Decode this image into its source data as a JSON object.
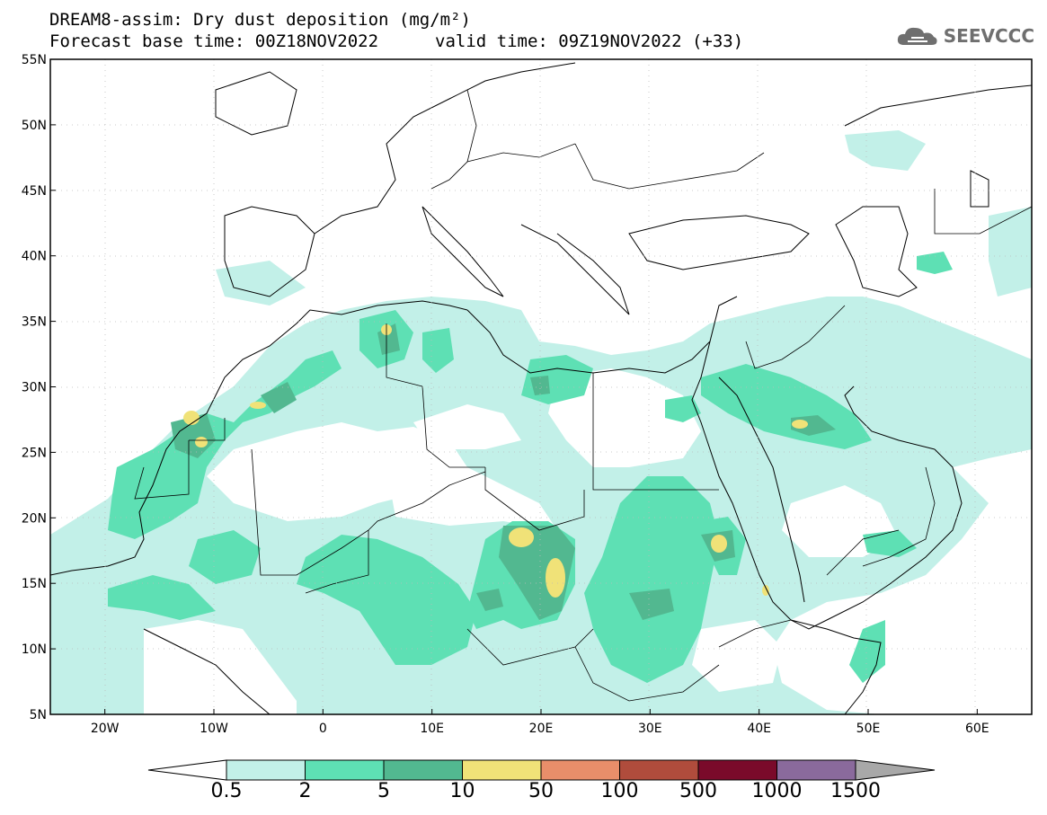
{
  "header": {
    "title": "DREAM8-assim: Dry dust deposition (mg/m²)",
    "base_time": "Forecast base time: 00Z18NOV2022",
    "valid_time": "valid time: 09Z19NOV2022 (+33)"
  },
  "logo": {
    "text": "SEEVCCC",
    "icon": "cloud-icon"
  },
  "axes": {
    "lat_labels": [
      "55N",
      "50N",
      "45N",
      "40N",
      "35N",
      "30N",
      "25N",
      "20N",
      "15N",
      "10N",
      "5N"
    ],
    "lon_labels": [
      "20W",
      "10W",
      "0",
      "10E",
      "20E",
      "30E",
      "40E",
      "50E",
      "60E"
    ],
    "lon_range": [
      -25,
      65
    ],
    "lat_range": [
      5,
      55
    ]
  },
  "colorbar": {
    "labels": [
      "0.5",
      "2",
      "5",
      "10",
      "50",
      "100",
      "500",
      "1000",
      "1500"
    ],
    "colors": [
      "#c2f0e8",
      "#5ee0b4",
      "#52b890",
      "#f0e278",
      "#e88e6a",
      "#b04c3c",
      "#7a0a2a",
      "#8a6a9c",
      "#a8a8a8"
    ]
  },
  "map_colors": {
    "light": "#c2f0e8",
    "mid": "#5ee0b4",
    "dark": "#52b890",
    "yellow": "#f0e278",
    "coast": "#000000"
  }
}
